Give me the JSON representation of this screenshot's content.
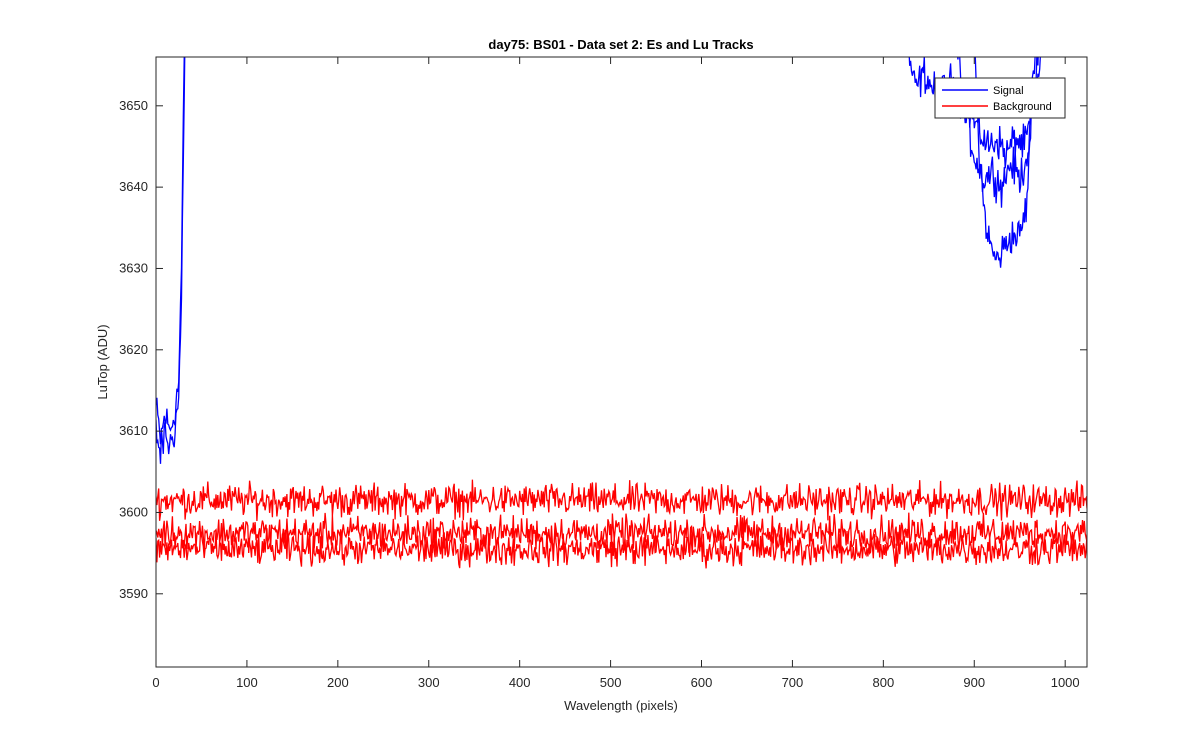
{
  "chart_data": {
    "type": "line",
    "title": "day75: BS01 - Data set 2: Es and Lu Tracks",
    "xlabel": "Wavelength (pixels)",
    "ylabel": "LuTop (ADU)",
    "xlim": [
      0,
      1024
    ],
    "ylim": [
      3581,
      3656
    ],
    "xticks": [
      0,
      100,
      200,
      300,
      400,
      500,
      600,
      700,
      800,
      900,
      1000
    ],
    "yticks": [
      3590,
      3600,
      3610,
      3620,
      3630,
      3640,
      3650
    ],
    "grid": false,
    "legend": {
      "location": "top-right",
      "entries": [
        "Signal",
        "Background"
      ]
    },
    "series": [
      {
        "name": "Signal",
        "color": "#0000ff",
        "traces": [
          {
            "x": [
              0,
              5,
              10,
              15,
              20,
              25,
              28,
              30,
              32
            ],
            "y": [
              3613,
              3609,
              3612,
              3610,
              3612,
              3616,
              3630,
              3648,
              3660
            ]
          },
          {
            "x": [
              0,
              5,
              10,
              15,
              20,
              25,
              28,
              30,
              32
            ],
            "y": [
              3610,
              3607,
              3610,
              3608,
              3610,
              3614,
              3626,
              3644,
              3660
            ]
          },
          {
            "x": [
              825,
              835,
              845,
              860,
              875,
              890,
              905,
              915,
              925,
              935,
              945,
              955,
              962,
              968,
              975
            ],
            "y": [
              3658,
              3652,
              3654,
              3651,
              3653,
              3650,
              3647,
              3645,
              3646,
              3644,
              3646,
              3645,
              3648,
              3652,
              3658
            ]
          },
          {
            "x": [
              880,
              890,
              900,
              910,
              920,
              930,
              940,
              950,
              958,
              965,
              972
            ],
            "y": [
              3658,
              3649,
              3644,
              3641,
              3642,
              3640,
              3643,
              3641,
              3644,
              3650,
              3658
            ]
          },
          {
            "x": [
              900,
              905,
              910,
              915,
              920,
              925,
              930,
              940,
              950,
              958,
              963,
              968
            ],
            "y": [
              3658,
              3645,
              3638,
              3634,
              3632,
              3631,
              3632,
              3634,
              3634,
              3638,
              3650,
              3658
            ]
          }
        ]
      },
      {
        "name": "Background",
        "color": "#ff0000",
        "traces": [
          {
            "x": [
              0,
              1024
            ],
            "y": [
              3601.5,
              3601.5
            ],
            "spread": 1.4
          },
          {
            "x": [
              0,
              1024
            ],
            "y": [
              3597.5,
              3597.5
            ],
            "spread": 1.4
          },
          {
            "x": [
              0,
              1024
            ],
            "y": [
              3595.5,
              3595.5
            ],
            "spread": 1.4
          }
        ]
      }
    ]
  }
}
